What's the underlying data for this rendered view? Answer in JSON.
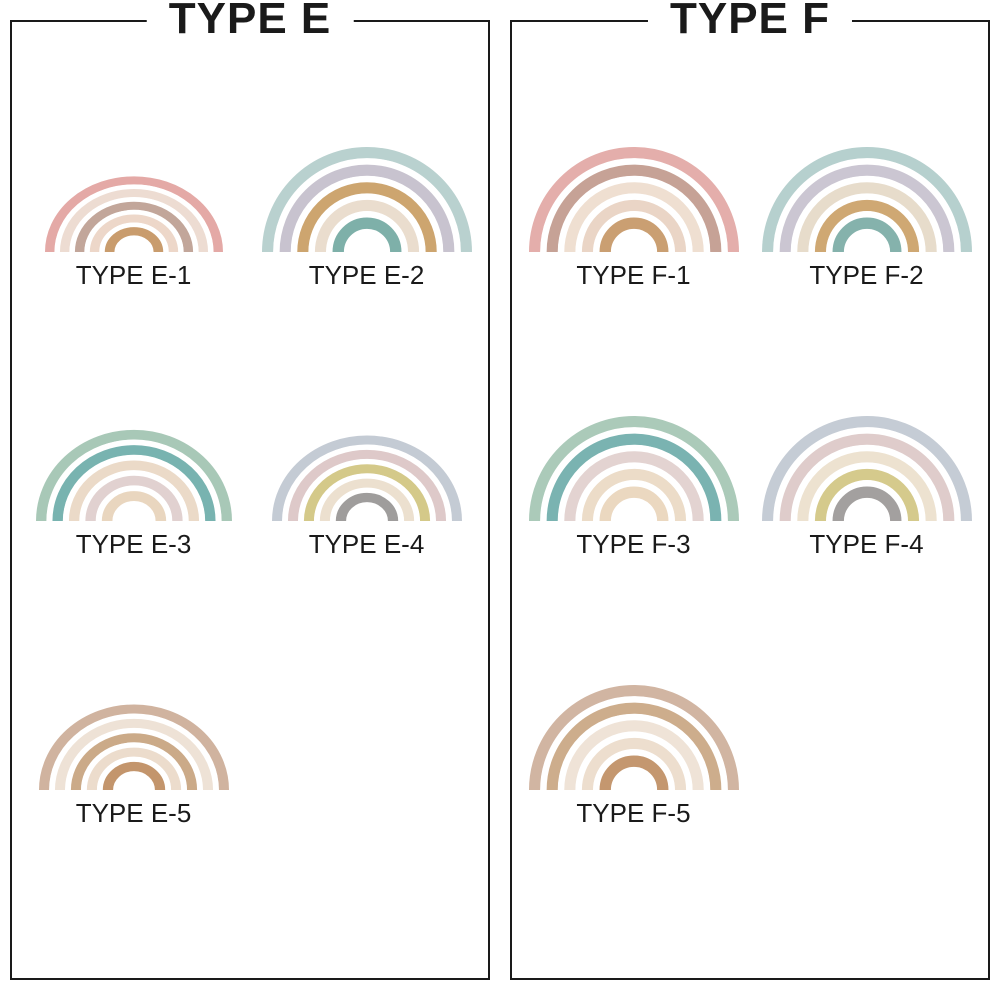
{
  "background": "#ffffff",
  "border_color": "#1a1a1a",
  "title_fontsize": 44,
  "label_fontsize": 26,
  "label_color": "#1a1a1a",
  "rainbow_gap_color": "#ffffff",
  "panels": [
    {
      "title": "TYPE E",
      "items": [
        {
          "label": "TYPE E-1",
          "squish": 0.85,
          "bands": [
            "#e4a9a6",
            "#eddcd2",
            "#c2a69a",
            "#edd7c9",
            "#c99c6d"
          ]
        },
        {
          "label": "TYPE E-2",
          "squish": 1.0,
          "bands": [
            "#b9d1cf",
            "#c8c3cf",
            "#cda56f",
            "#eaddce",
            "#7eb0a9"
          ]
        },
        {
          "label": "TYPE E-3",
          "squish": 0.93,
          "bands": [
            "#a8c8b7",
            "#78b3b0",
            "#ebdac8",
            "#e1d1d0",
            "#e9d6bf"
          ]
        },
        {
          "label": "TYPE E-4",
          "squish": 0.9,
          "bands": [
            "#c4cbd4",
            "#dec9c9",
            "#d4c989",
            "#ece0cf",
            "#9f9d9c"
          ]
        },
        {
          "label": "TYPE E-5",
          "squish": 0.9,
          "bands": [
            "#d0b39f",
            "#eee2d6",
            "#cbaa88",
            "#ecdccc",
            "#c3956c"
          ]
        }
      ]
    },
    {
      "title": "TYPE F",
      "items": [
        {
          "label": "TYPE F-1",
          "squish": 1.0,
          "bands": [
            "#e4aeab",
            "#c6a296",
            "#efdfd1",
            "#ead5c6",
            "#ca9f72"
          ]
        },
        {
          "label": "TYPE F-2",
          "squish": 1.0,
          "bands": [
            "#b6d0ce",
            "#cbc6d2",
            "#e7dccb",
            "#cfa873",
            "#85b2ac"
          ]
        },
        {
          "label": "TYPE F-3",
          "squish": 1.0,
          "bands": [
            "#abcab9",
            "#7ab3b1",
            "#e3d3d1",
            "#ecdcc8",
            "#ebd8c0"
          ]
        },
        {
          "label": "TYPE F-4",
          "squish": 1.0,
          "bands": [
            "#c5ccd5",
            "#dfcccb",
            "#ede2d0",
            "#d5ca8c",
            "#a3a09f"
          ]
        },
        {
          "label": "TYPE F-5",
          "squish": 1.0,
          "bands": [
            "#d1b5a2",
            "#cdad8c",
            "#efe3d7",
            "#eddece",
            "#c4976f"
          ]
        }
      ]
    }
  ]
}
